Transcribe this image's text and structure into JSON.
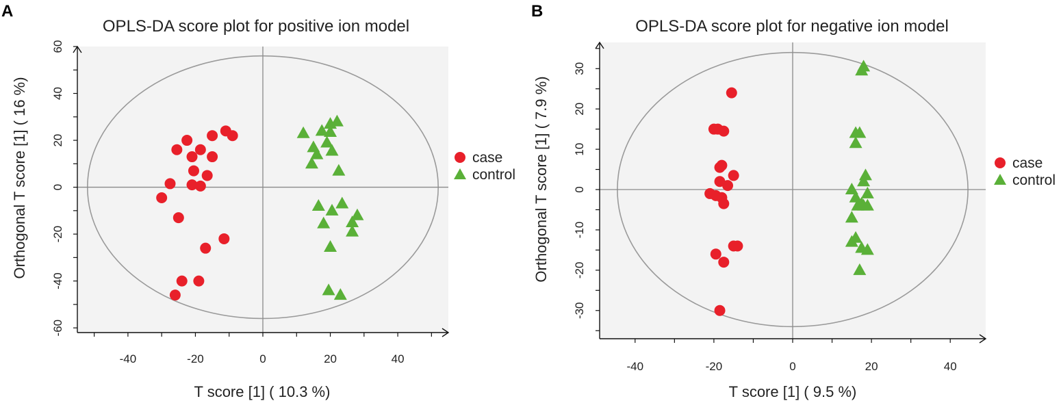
{
  "chart_data": [
    {
      "type": "scatter",
      "panel": "A",
      "title": "OPLS-DA score plot for positive ion model",
      "xlabel": "T score [1] ( 10.3 %)",
      "ylabel": "Orthogonal T score [1] ( 16 %)",
      "xlim": [
        -55,
        55
      ],
      "ylim": [
        -62,
        60
      ],
      "xticks": [
        "-40",
        "-20",
        "0",
        "20",
        "40"
      ],
      "yticks": [
        "-60",
        "-40",
        "-20",
        "0",
        "20",
        "40",
        "60"
      ],
      "ellipse": {
        "cx": 0,
        "cy": 0,
        "rx": 52,
        "ry": 56
      },
      "legend": [
        "case",
        "control"
      ],
      "series": [
        {
          "name": "case",
          "marker": "circle",
          "color": "#e8202a",
          "points": [
            [
              -30,
              -4.5
            ],
            [
              -27.5,
              1.5
            ],
            [
              -25,
              -13
            ],
            [
              -25.5,
              16
            ],
            [
              -22.5,
              20
            ],
            [
              -21,
              13
            ],
            [
              -20.5,
              7
            ],
            [
              -21,
              1
            ],
            [
              -18.5,
              16
            ],
            [
              -18.5,
              0.5
            ],
            [
              -16.5,
              5
            ],
            [
              -15,
              13
            ],
            [
              -15,
              22
            ],
            [
              -11,
              24
            ],
            [
              -9,
              22
            ],
            [
              -11.5,
              -22
            ],
            [
              -17,
              -26
            ],
            [
              -19,
              -40
            ],
            [
              -24,
              -40
            ],
            [
              -26,
              -46
            ]
          ]
        },
        {
          "name": "control",
          "marker": "triangle",
          "color": "#5ab038",
          "points": [
            [
              12,
              23
            ],
            [
              15,
              17
            ],
            [
              14.5,
              10
            ],
            [
              16,
              14
            ],
            [
              17.5,
              24
            ],
            [
              19,
              19
            ],
            [
              20,
              23.5
            ],
            [
              20,
              27
            ],
            [
              22,
              28
            ],
            [
              20.5,
              15.5
            ],
            [
              22.5,
              7
            ],
            [
              16.5,
              -8
            ],
            [
              18,
              -15.5
            ],
            [
              20.5,
              -10
            ],
            [
              23.5,
              -7
            ],
            [
              26.5,
              -15
            ],
            [
              28,
              -12
            ],
            [
              26.5,
              -19
            ],
            [
              20,
              -25.5
            ],
            [
              19.5,
              -44
            ],
            [
              23,
              -46
            ]
          ]
        }
      ]
    },
    {
      "type": "scatter",
      "panel": "B",
      "title": "OPLS-DA score plot for negative ion model",
      "xlabel": "T score [1] ( 9.5 %)",
      "ylabel": "Orthogonal T score [1] ( 7.9 %)",
      "xlim": [
        -49,
        49
      ],
      "ylim": [
        -37,
        36.5
      ],
      "xticks": [
        "-40",
        "-20",
        "0",
        "20",
        "40"
      ],
      "yticks": [
        "-30",
        "-20",
        "-10",
        "0",
        "10",
        "20",
        "30"
      ],
      "ellipse": {
        "cx": 0,
        "cy": 0,
        "rx": 44.5,
        "ry": 34
      },
      "legend": [
        "case",
        "control"
      ],
      "series": [
        {
          "name": "case",
          "marker": "circle",
          "color": "#e8202a",
          "points": [
            [
              -15.5,
              24
            ],
            [
              -20,
              15
            ],
            [
              -19,
              15
            ],
            [
              -17.5,
              14.5
            ],
            [
              -18,
              6
            ],
            [
              -18.5,
              5.5
            ],
            [
              -15,
              3.5
            ],
            [
              -18.5,
              2
            ],
            [
              -16.5,
              1
            ],
            [
              -21,
              -1
            ],
            [
              -19.5,
              -1.5
            ],
            [
              -18,
              -2
            ],
            [
              -17.5,
              -3.5
            ],
            [
              -15,
              -14
            ],
            [
              -14,
              -14
            ],
            [
              -19.5,
              -16
            ],
            [
              -17.5,
              -18
            ],
            [
              -18.5,
              -30
            ]
          ]
        },
        {
          "name": "control",
          "marker": "triangle",
          "color": "#5ab038",
          "points": [
            [
              18,
              30.5
            ],
            [
              17.5,
              29.5
            ],
            [
              16,
              14
            ],
            [
              17,
              14
            ],
            [
              16,
              11.5
            ],
            [
              18.5,
              3.5
            ],
            [
              18,
              2
            ],
            [
              15,
              0
            ],
            [
              19,
              -1
            ],
            [
              16,
              -2
            ],
            [
              17.5,
              -3.5
            ],
            [
              16.5,
              -4
            ],
            [
              18,
              -4
            ],
            [
              19,
              -4
            ],
            [
              15,
              -7
            ],
            [
              16,
              -12
            ],
            [
              15,
              -13
            ],
            [
              17.5,
              -14.5
            ],
            [
              19,
              -15
            ],
            [
              17,
              -20
            ]
          ]
        }
      ]
    }
  ]
}
